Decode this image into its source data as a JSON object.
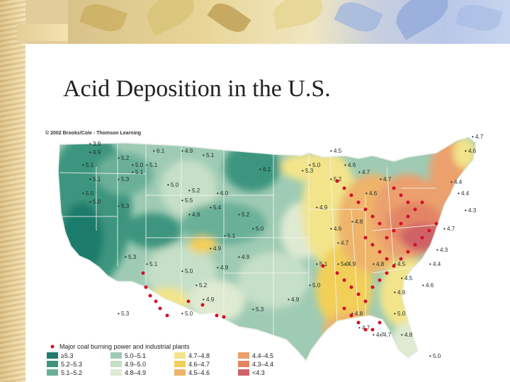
{
  "slide": {
    "title": "Acid Deposition in the U.S."
  },
  "map": {
    "copyright": "© 2002 Brooks/Cole - Thomson Learning",
    "region": "contiguous United States",
    "legend_caption": "Major coal burning power and industrial plants",
    "legend": [
      {
        "label": "≥5.3",
        "color": "#1f7c6c"
      },
      {
        "label": "5.2–5.3",
        "color": "#3d957f"
      },
      {
        "label": "5.1–5.2",
        "color": "#6ab098"
      },
      {
        "label": "5.0–5.1",
        "color": "#9fcbb4"
      },
      {
        "label": "4.9–5.0",
        "color": "#c6dfc7"
      },
      {
        "label": "4.8–4.9",
        "color": "#deead1"
      },
      {
        "label": "4.7–4.8",
        "color": "#f2e48a"
      },
      {
        "label": "4.6–4.7",
        "color": "#f1cf58"
      },
      {
        "label": "4.5–4.6",
        "color": "#eeb46a"
      },
      {
        "label": "4.4–4.5",
        "color": "#eba06d"
      },
      {
        "label": "4.3–4.4",
        "color": "#e38465"
      },
      {
        "label": "<4.3",
        "color": "#cf6266"
      }
    ],
    "plant_color": "#d2102a",
    "ph_labels": [
      "3.9",
      "4.9",
      "5.1",
      "5.1",
      "5.2",
      "5.0",
      "5.1",
      "5.3",
      "5.0",
      "5.0",
      "5.3",
      "5.1",
      "6.1",
      "4.9",
      "5.1",
      "6.1",
      "5.3",
      "5.0",
      "5.2",
      "5.5",
      "5.4",
      "6.0",
      "4.9",
      "5.2",
      "5.0",
      "5.1",
      "4.9",
      "4.9",
      "4.9",
      "5.0",
      "5.2",
      "4.9",
      "5.3",
      "5.0",
      "5.1",
      "5.3",
      "5.3",
      "4.5",
      "5.0",
      "5.2",
      "4.9",
      "4.6",
      "4.7",
      "5.1",
      "5.0",
      "5.0",
      "4.9",
      "4.8",
      "4.7",
      "5.0",
      "4.9",
      "4.6",
      "4.8",
      "4.9",
      "4.7",
      "4.4",
      "4.4",
      "4.3",
      "4.7",
      "4.6",
      "4.7",
      "4.3",
      "4.4",
      "4.6",
      "4.5",
      "4.5",
      "4.8",
      "4.6",
      "4.7",
      "4.7",
      "4.7",
      "4.8",
      "5.0"
    ]
  }
}
